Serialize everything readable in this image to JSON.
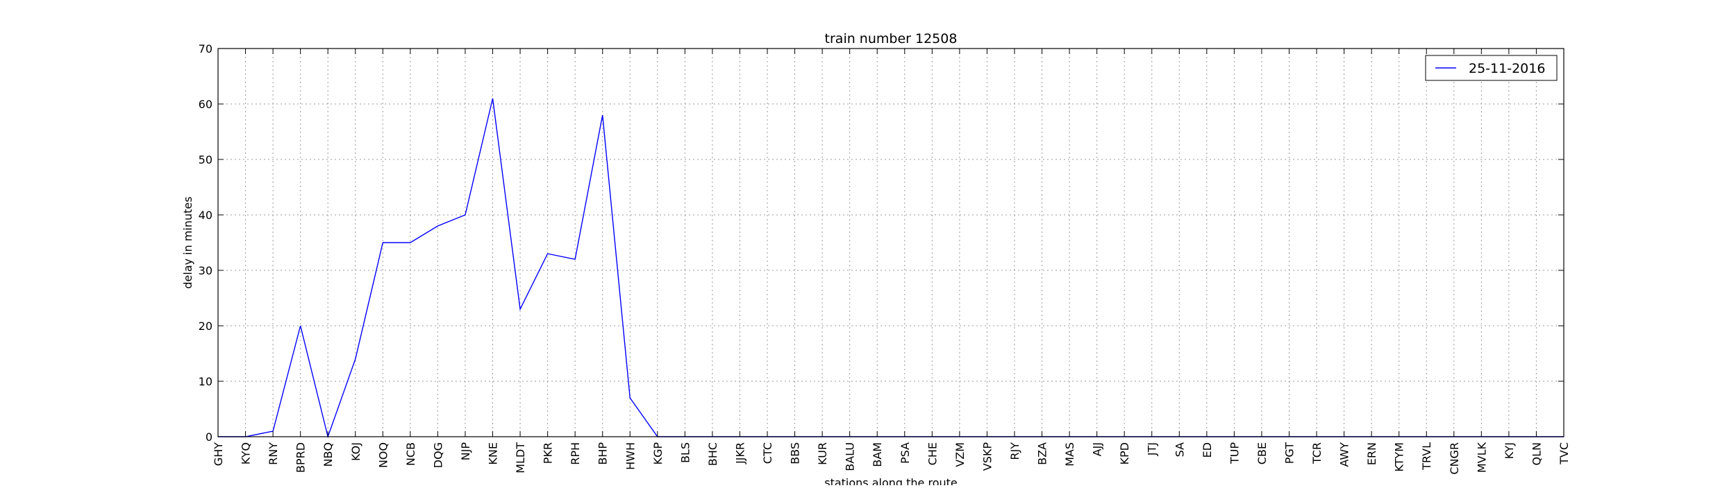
{
  "chart_data": {
    "type": "line",
    "title": "train number 12508",
    "xlabel": "stations along the route",
    "ylabel": "delay in minutes",
    "categories": [
      "GHY",
      "KYQ",
      "RNY",
      "BPRD",
      "NBQ",
      "KOJ",
      "NOQ",
      "NCB",
      "DQG",
      "NJP",
      "KNE",
      "MLDT",
      "PKR",
      "RPH",
      "BHP",
      "HWH",
      "KGP",
      "BLS",
      "BHC",
      "JJKR",
      "CTC",
      "BBS",
      "KUR",
      "BALU",
      "BAM",
      "PSA",
      "CHE",
      "VZM",
      "VSKP",
      "RJY",
      "BZA",
      "MAS",
      "AJJ",
      "KPD",
      "JTJ",
      "SA",
      "ED",
      "TUP",
      "CBE",
      "PGT",
      "TCR",
      "AWY",
      "ERN",
      "KTYM",
      "TRVL",
      "CNGR",
      "MVLK",
      "KYJ",
      "QLN",
      "TVC"
    ],
    "series": [
      {
        "name": "25-11-2016",
        "color": "#0000ff",
        "values": [
          0,
          0,
          1,
          20,
          0,
          14,
          35,
          35,
          38,
          40,
          61,
          23,
          33,
          32,
          58,
          7,
          0,
          0,
          0,
          0,
          0,
          0,
          0,
          0,
          0,
          0,
          0,
          0,
          0,
          0,
          0,
          0,
          0,
          0,
          0,
          0,
          0,
          0,
          0,
          0,
          0,
          0,
          0,
          0,
          0,
          0,
          0,
          0,
          0,
          0
        ]
      }
    ],
    "ylim": [
      0,
      70
    ],
    "yticks": [
      0,
      10,
      20,
      30,
      40,
      50,
      60,
      70
    ],
    "grid": true,
    "legend": "top-right"
  }
}
